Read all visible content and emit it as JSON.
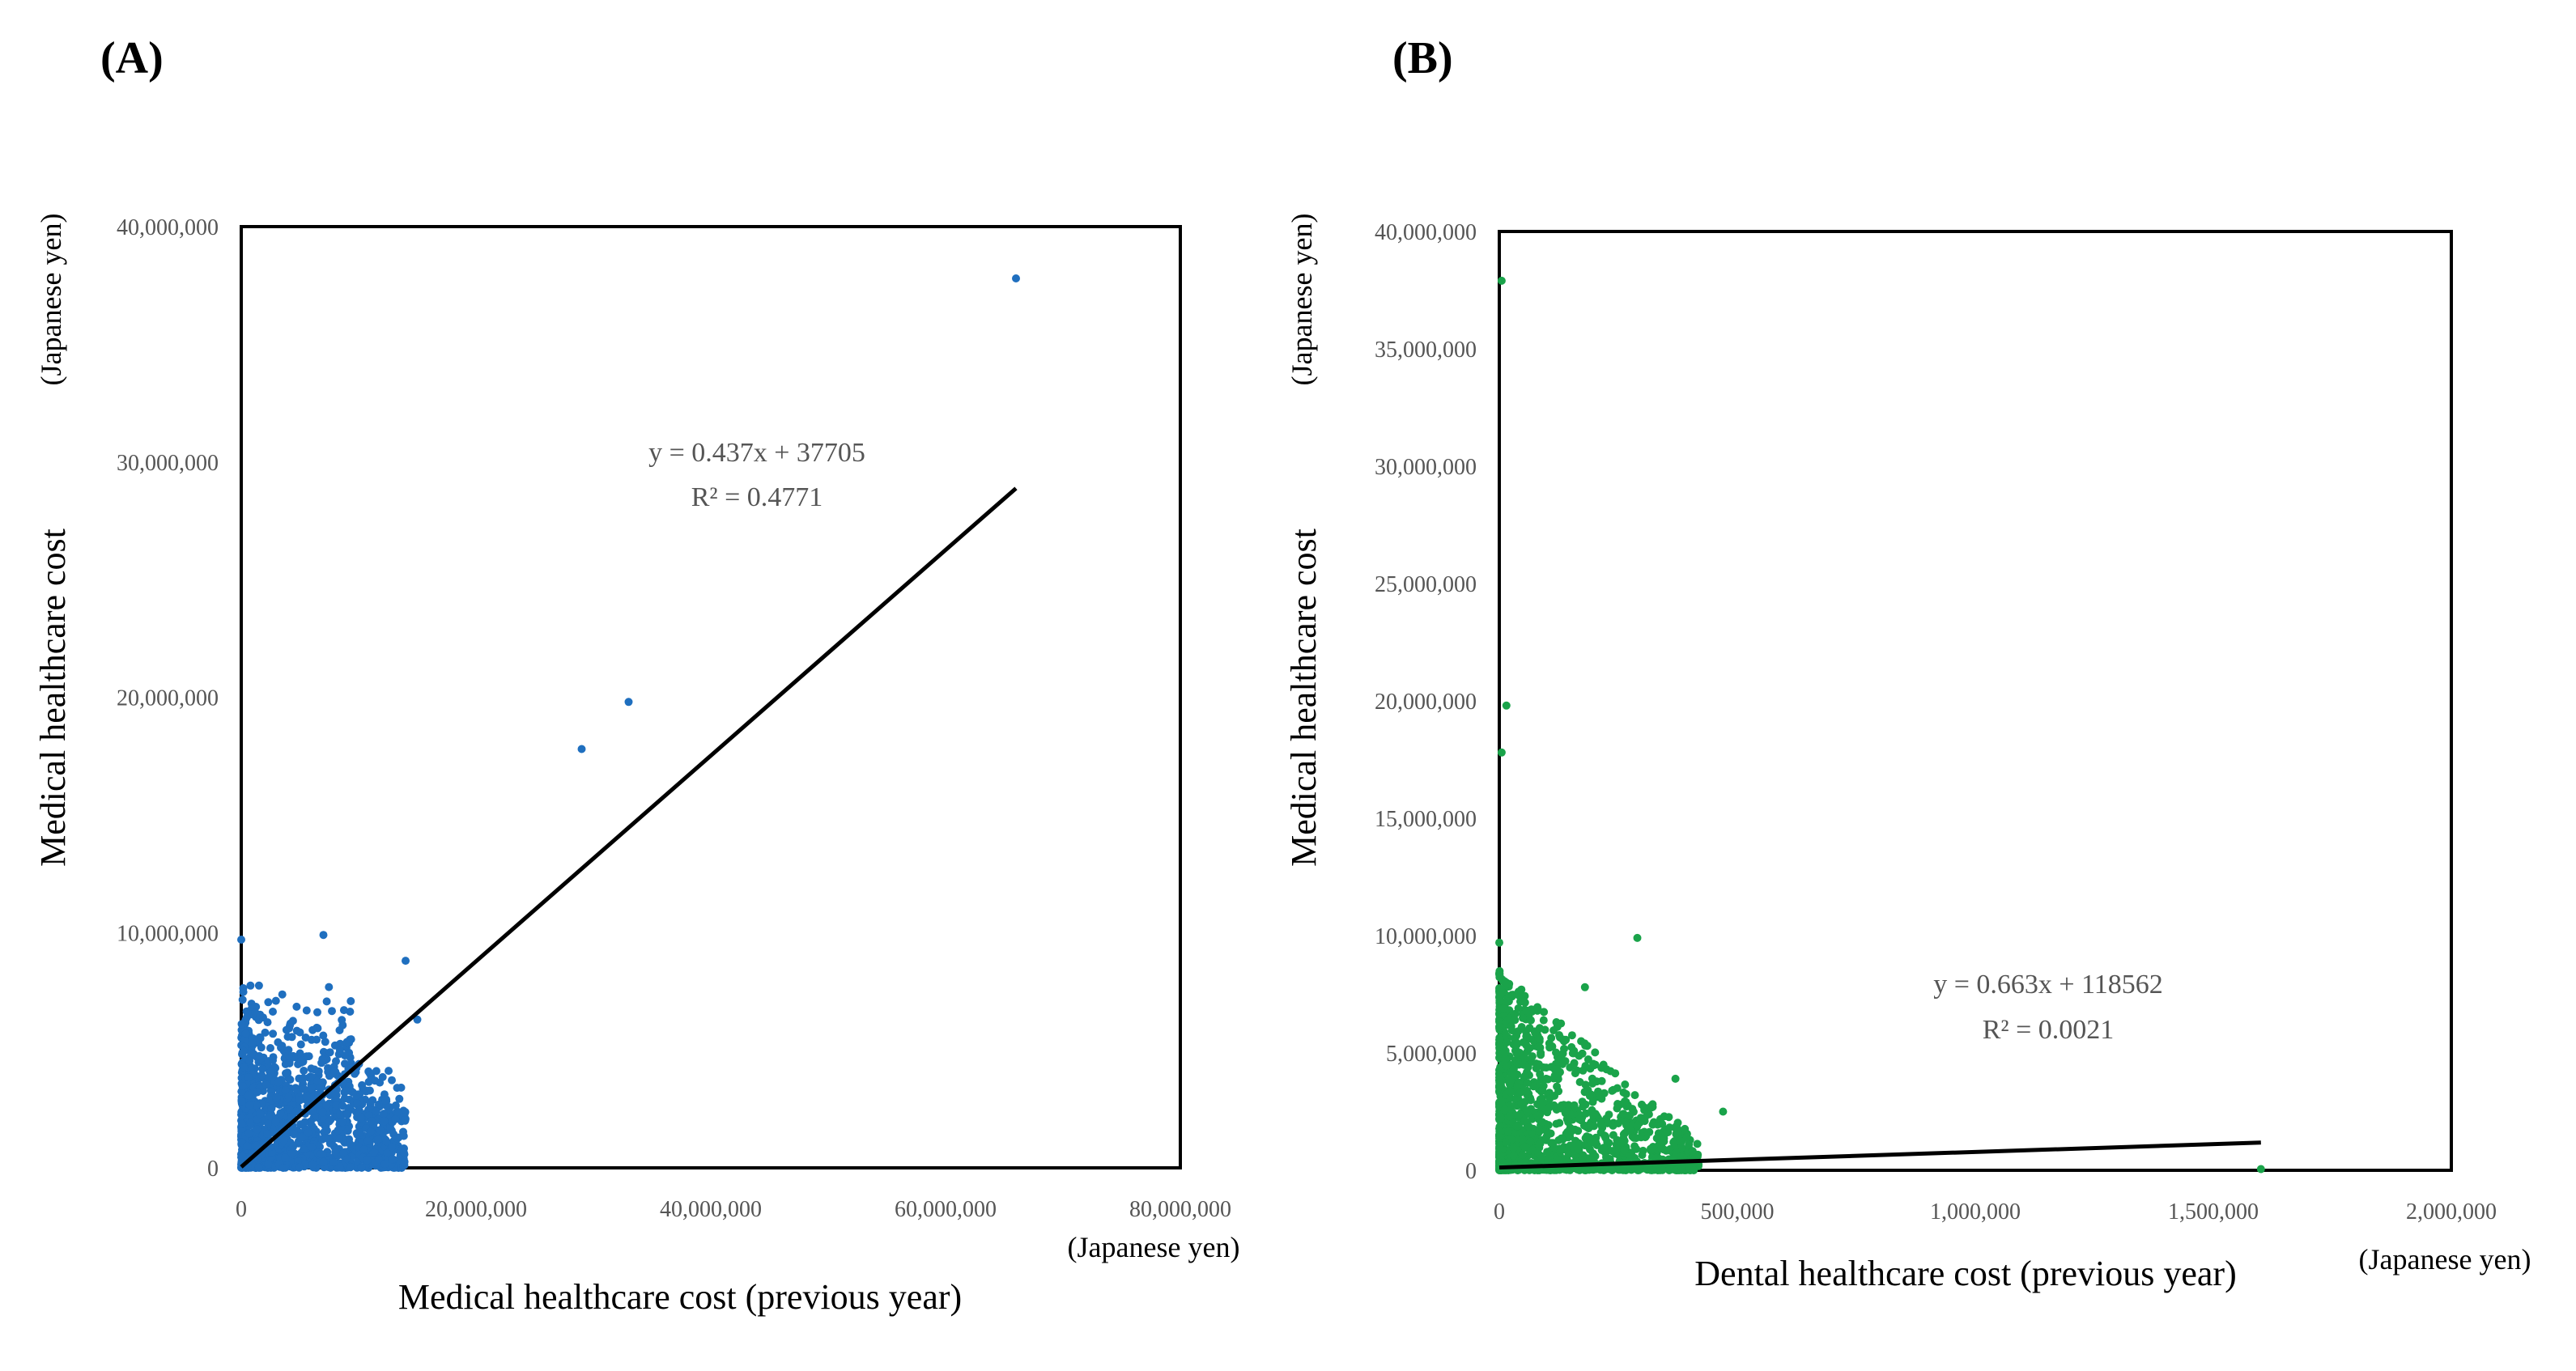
{
  "chart_data": [
    {
      "type": "scatter",
      "panel_label": "(A)",
      "xlabel": "Medical healthcare cost (previous year)",
      "x_unit": "(Japanese yen)",
      "ylabel": "Medical healthcare cost",
      "y_unit": "(Japanese yen)",
      "xlim": [
        0,
        80000000
      ],
      "ylim": [
        0,
        40000000
      ],
      "xticks": [
        "0",
        "20,000,000",
        "40,000,000",
        "60,000,000",
        "80,000,000"
      ],
      "yticks": [
        "0",
        "10,000,000",
        "20,000,000",
        "30,000,000",
        "40,000,000"
      ],
      "marker_color": "#1f6fbf",
      "trendline": {
        "slope": 0.437,
        "intercept": 37705,
        "x_range": [
          0,
          66000000
        ],
        "equation": "y = 0.437x + 37705",
        "r2": "R² = 0.4771",
        "color": "#000000"
      },
      "outliers": [
        {
          "x": 66000000,
          "y": 37800000
        },
        {
          "x": 33000000,
          "y": 19800000
        },
        {
          "x": 29000000,
          "y": 17800000
        },
        {
          "x": 14000000,
          "y": 8800000
        },
        {
          "x": 15000000,
          "y": 6300000
        },
        {
          "x": 7000000,
          "y": 9900000
        },
        {
          "x": 0,
          "y": 9700000
        }
      ],
      "cluster": {
        "x_max": 14000000,
        "y_max": 8000000,
        "count": 1400,
        "seed": 7,
        "mode": "medical"
      }
    },
    {
      "type": "scatter",
      "panel_label": "(B)",
      "xlabel": "Dental healthcare cost (previous year)",
      "x_unit": "(Japanese yen)",
      "ylabel": "Medical healthcare cost",
      "y_unit": "(Japanese yen)",
      "xlim": [
        0,
        2000000
      ],
      "ylim": [
        0,
        40000000
      ],
      "xticks": [
        "0",
        "500,000",
        "1,000,000",
        "1,500,000",
        "2,000,000"
      ],
      "yticks": [
        "0",
        "5,000,000",
        "10,000,000",
        "15,000,000",
        "20,000,000",
        "25,000,000",
        "30,000,000",
        "35,000,000",
        "40,000,000"
      ],
      "marker_color": "#1aa34a",
      "trendline": {
        "slope": 0.663,
        "intercept": 118562,
        "x_range": [
          0,
          1600000
        ],
        "equation": "y = 0.663x + 118562",
        "r2": "R² = 0.0021",
        "color": "#000000"
      },
      "outliers": [
        {
          "x": 5000,
          "y": 37900000
        },
        {
          "x": 15000,
          "y": 19800000
        },
        {
          "x": 5000,
          "y": 17800000
        },
        {
          "x": 290000,
          "y": 9900000
        },
        {
          "x": 180000,
          "y": 7800000
        },
        {
          "x": 370000,
          "y": 3900000
        },
        {
          "x": 470000,
          "y": 2500000
        },
        {
          "x": 1600000,
          "y": 50000
        },
        {
          "x": 0,
          "y": 9700000
        }
      ],
      "cluster": {
        "x_max": 420000,
        "y_max": 8500000,
        "count": 1400,
        "seed": 13,
        "mode": "dental"
      }
    }
  ]
}
